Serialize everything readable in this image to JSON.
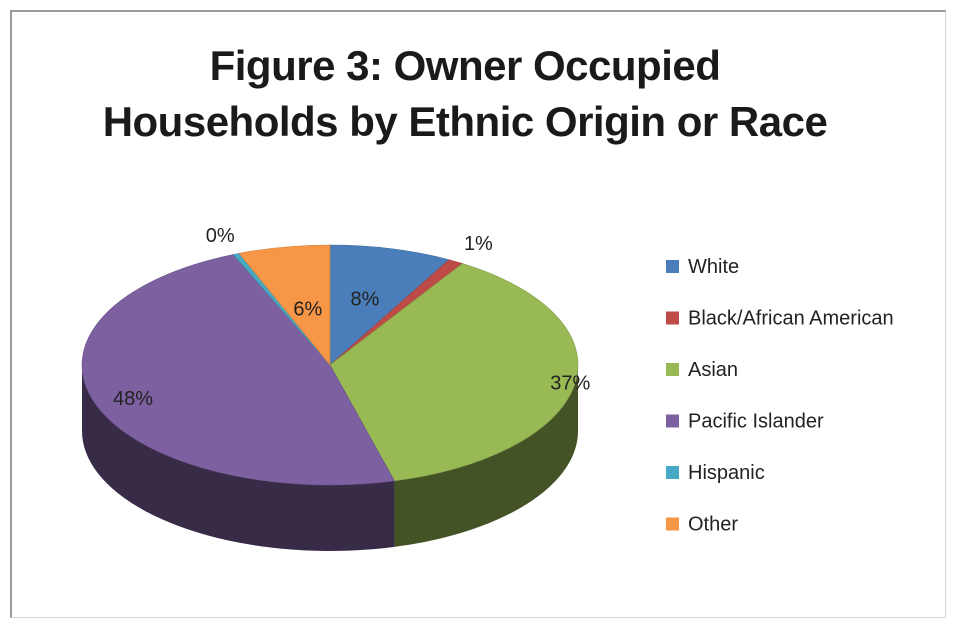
{
  "chart_data": {
    "type": "pie",
    "title": "Figure 3: Owner Occupied Households by Ethnic Origin or Race",
    "title_lines": [
      "Figure 3: Owner Occupied",
      "Households by Ethnic Origin or Race"
    ],
    "three_d": true,
    "legend_position": "right",
    "slices": [
      {
        "name": "White",
        "value": 8,
        "label": "8%",
        "color": "#4A7EBB"
      },
      {
        "name": "Black/African American",
        "value": 1,
        "label": "1%",
        "color": "#BE4B48"
      },
      {
        "name": "Asian",
        "value": 37,
        "label": "37%",
        "color": "#98B954"
      },
      {
        "name": "Pacific Islander",
        "value": 48,
        "label": "48%",
        "color": "#7D60A0"
      },
      {
        "name": "Hispanic",
        "value": 0.4,
        "label": "0%",
        "color": "#46AAC5"
      },
      {
        "name": "Other",
        "value": 6,
        "label": "6%",
        "color": "#F79646"
      }
    ]
  }
}
